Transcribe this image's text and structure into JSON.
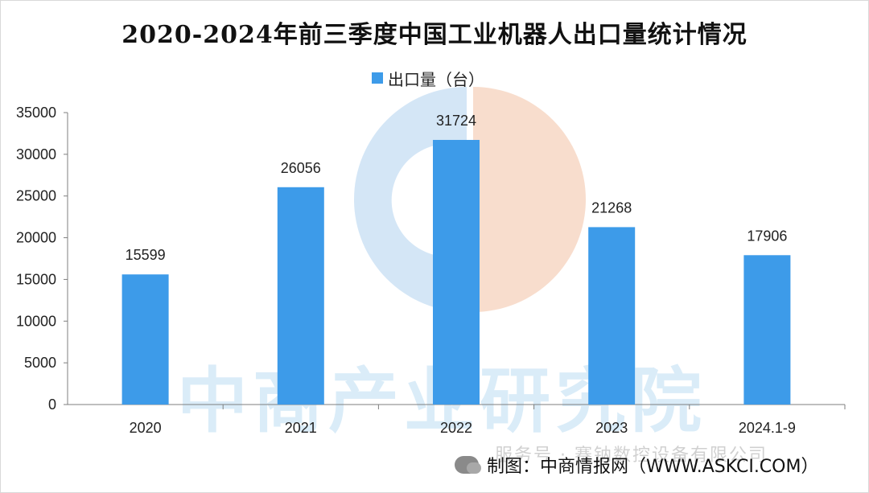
{
  "title": "2020-2024年前三季度中国工业机器人出口量统计情况",
  "watermark": "中商产业研究院",
  "footer": {
    "source": "制图：中商情报网（WWW.ASKCI.COM）",
    "overlay_text": "服务号 · 赛钠数控设备有限公司"
  },
  "colors": {
    "bar": "#3d9be9",
    "axis": "#7f7f7f",
    "logo_blue": "#cfe3f5",
    "logo_orange": "#f7d9c8"
  },
  "chart_data": {
    "type": "bar",
    "title": "2020-2024年前三季度中国工业机器人出口量统计情况",
    "categories": [
      "2020",
      "2021",
      "2022",
      "2023",
      "2024.1-9"
    ],
    "series": [
      {
        "name": "出口量（台）",
        "values": [
          15599,
          26056,
          31724,
          21268,
          17906
        ]
      }
    ],
    "ylim": [
      0,
      35000
    ],
    "yticks": [
      "0",
      "5000",
      "10000",
      "15000",
      "20000",
      "25000",
      "30000",
      "35000"
    ],
    "legend": "top-center",
    "grid": false
  }
}
